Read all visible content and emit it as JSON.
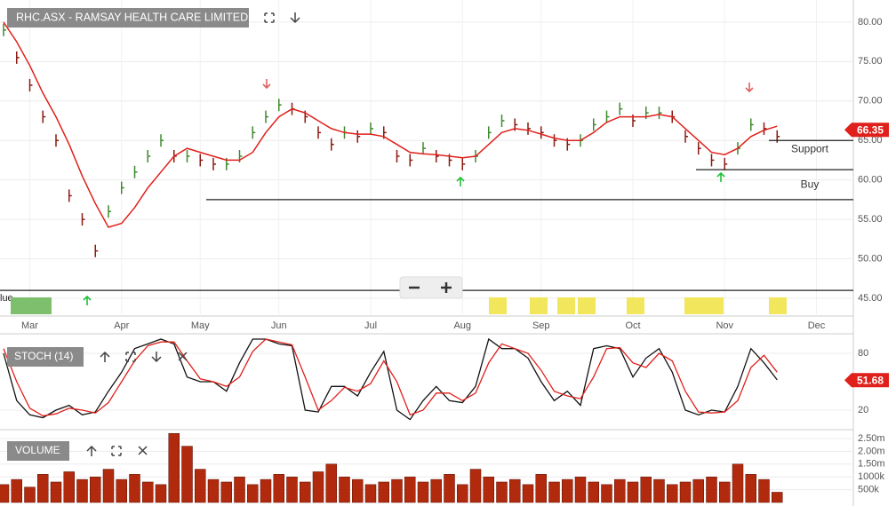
{
  "header": {
    "label_cut": "lue"
  },
  "chart_data": [
    {
      "type": "ohlc",
      "title": "RHC.ASX - RAMSAY HEALTH CARE LIMITED",
      "categories": [
        null,
        null,
        "Mar",
        null,
        null,
        null,
        null,
        null,
        null,
        "Apr",
        null,
        null,
        null,
        null,
        null,
        "May",
        null,
        null,
        null,
        null,
        null,
        "Jun",
        null,
        null,
        null,
        null,
        null,
        null,
        "Jul",
        null,
        null,
        null,
        null,
        null,
        null,
        "Aug",
        null,
        null,
        null,
        null,
        null,
        "Sep",
        null,
        null,
        null,
        null,
        null,
        null,
        "Oct",
        null,
        null,
        null,
        null,
        null,
        null,
        "Nov",
        null,
        null,
        null,
        null,
        null,
        null,
        "Dec"
      ],
      "series": [
        {
          "color": "#3d8a2e",
          "values": [
            79,
            75.5,
            72,
            68,
            65,
            58,
            55,
            51,
            56,
            59,
            61,
            63,
            65,
            63,
            63,
            62.5,
            62,
            62,
            63,
            66,
            68,
            69.5,
            69,
            68,
            66,
            64.5,
            66,
            65.5,
            66.5,
            66,
            63,
            62.5,
            64,
            63,
            62.5,
            62,
            63,
            66,
            67.5,
            67,
            66.5,
            66,
            65,
            64.5,
            65,
            67,
            68,
            69,
            67.5,
            68.5,
            68.5,
            68,
            65.5,
            64,
            62.5,
            62,
            64,
            67,
            66.5,
            65.5,
            null,
            null,
            null
          ]
        },
        {
          "color": "#e0201b",
          "values": [
            80,
            77.5,
            74.5,
            71,
            68,
            64.5,
            60.5,
            57,
            54,
            54.5,
            56.5,
            59,
            61,
            63,
            64,
            63.5,
            63,
            62.5,
            62.5,
            63.5,
            66,
            68,
            69,
            68.5,
            67.5,
            66.5,
            66,
            65.8,
            65.8,
            65.5,
            64.5,
            63.5,
            63.3,
            63.2,
            63,
            62.8,
            63,
            64.5,
            66,
            66.5,
            66.3,
            65.8,
            65.3,
            65,
            65,
            66,
            67.3,
            68,
            68,
            68,
            68.3,
            68,
            66.5,
            65,
            63.5,
            63.2,
            64,
            65.5,
            66.3,
            66.8,
            null,
            null,
            null
          ]
        }
      ],
      "last_value": 66.35,
      "ylim": [
        42.75,
        82.8
      ],
      "yticks": [
        {
          "value": 45,
          "label": "45.00"
        },
        {
          "value": 50,
          "label": "50.00"
        },
        {
          "value": 55,
          "label": "55.00"
        },
        {
          "value": 60,
          "label": "60.00"
        },
        {
          "value": 65,
          "label": "65.00"
        },
        {
          "value": 70,
          "label": "70.00"
        },
        {
          "value": 75,
          "label": "75.00"
        },
        {
          "value": 80,
          "label": "80.00"
        }
      ],
      "grid": true,
      "levels": [
        {
          "label": "Support",
          "value": 65
        },
        {
          "label": "Buy",
          "value": 61.3
        },
        {
          "value": 57.5
        },
        {
          "value": 46
        }
      ]
    },
    {
      "type": "line",
      "title": "STOCH (14)",
      "series": [
        {
          "color": "#111111",
          "values": [
            80,
            30,
            15,
            12,
            20,
            25,
            15,
            18,
            40,
            60,
            85,
            90,
            95,
            90,
            55,
            50,
            50,
            40,
            70,
            95,
            95,
            90,
            88,
            20,
            18,
            45,
            45,
            35,
            60,
            82,
            20,
            10,
            30,
            45,
            30,
            28,
            45,
            95,
            85,
            85,
            75,
            50,
            30,
            40,
            25,
            85,
            88,
            85,
            55,
            75,
            85,
            60,
            20,
            15,
            20,
            18,
            45,
            85,
            70,
            52
          ]
        },
        {
          "color": "#e0201b",
          "values": [
            85,
            50,
            22,
            14,
            16,
            22,
            20,
            17,
            28,
            50,
            72,
            88,
            92,
            92,
            72,
            53,
            50,
            45,
            55,
            82,
            95,
            92,
            89,
            55,
            20,
            30,
            44,
            40,
            48,
            72,
            50,
            15,
            20,
            38,
            38,
            30,
            38,
            70,
            90,
            85,
            80,
            62,
            40,
            35,
            32,
            55,
            85,
            86,
            70,
            65,
            80,
            72,
            40,
            18,
            17,
            18,
            30,
            65,
            78,
            60
          ]
        }
      ],
      "last_value": 51.68,
      "ylim": [
        0,
        100
      ],
      "yticks": [
        20,
        80
      ],
      "grid": true
    },
    {
      "type": "bar",
      "title": "VOLUME",
      "color": "#b12a0e",
      "values": [
        700000,
        900000,
        600000,
        1100000,
        800000,
        1200000,
        900000,
        1000000,
        1300000,
        900000,
        1100000,
        800000,
        700000,
        2700000,
        2200000,
        1300000,
        900000,
        800000,
        1000000,
        700000,
        900000,
        1100000,
        1000000,
        800000,
        1200000,
        1500000,
        1000000,
        900000,
        700000,
        800000,
        900000,
        1000000,
        800000,
        900000,
        1100000,
        700000,
        1300000,
        1000000,
        800000,
        900000,
        700000,
        1100000,
        800000,
        900000,
        1000000,
        800000,
        700000,
        900000,
        800000,
        1000000,
        900000,
        700000,
        800000,
        900000,
        1000000,
        800000,
        1500000,
        1100000,
        900000,
        400000
      ],
      "ylim": [
        0,
        2812500
      ],
      "yticks": [
        {
          "value": 500000,
          "label": "500k"
        },
        {
          "value": 1000000,
          "label": "1000k"
        },
        {
          "value": 1500000,
          "label": "1.50m"
        },
        {
          "value": 2000000,
          "label": "2.00m"
        },
        {
          "value": 2500000,
          "label": "2.50m"
        }
      ],
      "grid": true
    }
  ]
}
